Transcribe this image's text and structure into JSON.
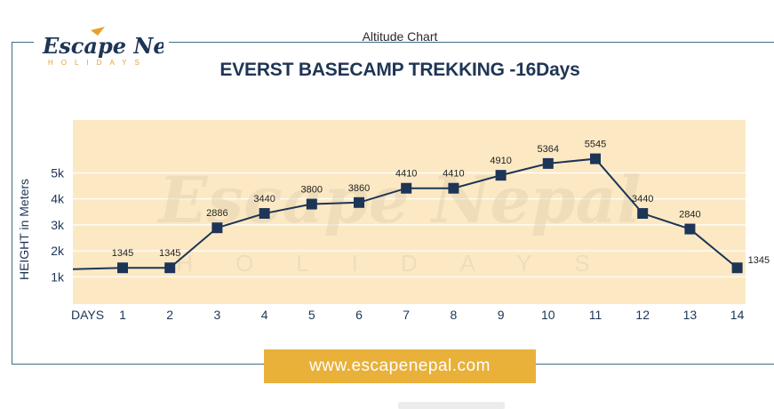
{
  "header": {
    "logo_main": "Escape Nepal",
    "logo_sub": "HOLIDAYS",
    "subtitle": "Altitude Chart"
  },
  "footer": {
    "url": "www.escapenepal.com"
  },
  "colors": {
    "plot_bg": "#fce9c4",
    "line": "#1d3556",
    "banner": "#e9b03a",
    "accent_orange": "#e6a02c",
    "frame": "#3d6c86"
  },
  "chart_data": {
    "type": "line",
    "title": "EVERST BASECAMP TREKKING -16Days",
    "xlabel": "DAYS",
    "ylabel": "HEIGHT in Meters",
    "x": [
      1,
      2,
      3,
      4,
      5,
      6,
      7,
      8,
      9,
      10,
      11,
      12,
      13,
      14
    ],
    "x_tick_labels": [
      "1",
      "2",
      "3",
      "4",
      "5",
      "6",
      "7",
      "8",
      "9",
      "10",
      "11",
      "12",
      "13",
      "14"
    ],
    "series": [
      {
        "values": [
          1345,
          1345,
          2886,
          3440,
          3800,
          3860,
          4410,
          4410,
          4910,
          5364,
          5545,
          3440,
          2840,
          1345
        ]
      }
    ],
    "y_ticks": [
      1000,
      2000,
      3000,
      4000,
      5000
    ],
    "y_tick_labels": [
      "1k",
      "2k",
      "3k",
      "4k",
      "5k"
    ],
    "ylim": [
      0,
      6500
    ],
    "xlim": [
      0,
      14
    ],
    "grid": "horizontal",
    "watermark": "Escape Nepal HOLIDAYS"
  }
}
